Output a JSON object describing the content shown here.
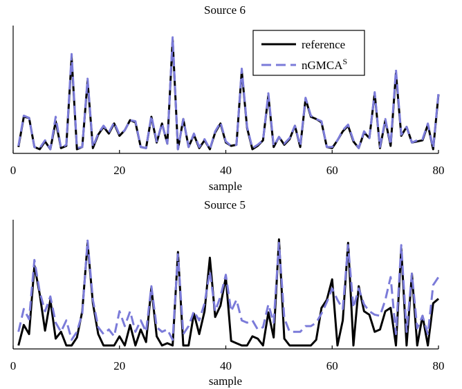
{
  "chart_data": [
    {
      "type": "line",
      "title": "Source 6",
      "xlabel": "sample",
      "ylabel": "",
      "xlim": [
        0,
        80
      ],
      "xticks": [
        0,
        20,
        40,
        60,
        80
      ],
      "ylim": [
        0,
        1
      ],
      "legend": {
        "placement": "top-right",
        "entries": [
          {
            "label": "reference",
            "sup": ""
          },
          {
            "label": "nGMCA",
            "sup": "S"
          }
        ]
      },
      "series": [
        {
          "name": "reference",
          "color": "#000000",
          "dash": "solid",
          "x": [
            1,
            2,
            3,
            4,
            5,
            6,
            7,
            8,
            9,
            10,
            11,
            12,
            13,
            14,
            15,
            16,
            17,
            18,
            19,
            20,
            21,
            22,
            23,
            24,
            25,
            26,
            27,
            28,
            29,
            30,
            31,
            32,
            33,
            34,
            35,
            36,
            37,
            38,
            39,
            40,
            41,
            42,
            43,
            44,
            45,
            46,
            47,
            48,
            49,
            50,
            51,
            52,
            53,
            54,
            55,
            56,
            57,
            58,
            59,
            60,
            61,
            62,
            63,
            64,
            65,
            66,
            67,
            68,
            69,
            70,
            71,
            72,
            73,
            74,
            75,
            76,
            77,
            78,
            79,
            80
          ],
          "values": [
            0.02,
            0.29,
            0.28,
            0.02,
            0.0,
            0.07,
            0.0,
            0.25,
            0.01,
            0.03,
            0.82,
            0.0,
            0.02,
            0.61,
            0.01,
            0.13,
            0.2,
            0.14,
            0.23,
            0.12,
            0.17,
            0.26,
            0.24,
            0.02,
            0.01,
            0.29,
            0.06,
            0.23,
            0.05,
            0.98,
            0.0,
            0.27,
            0.02,
            0.13,
            0.01,
            0.08,
            0.0,
            0.15,
            0.23,
            0.06,
            0.03,
            0.04,
            0.7,
            0.19,
            0.0,
            0.03,
            0.08,
            0.48,
            0.02,
            0.11,
            0.04,
            0.09,
            0.21,
            0.02,
            0.45,
            0.29,
            0.27,
            0.24,
            0.02,
            0.01,
            0.08,
            0.16,
            0.21,
            0.07,
            0.01,
            0.15,
            0.1,
            0.5,
            0.01,
            0.26,
            0.03,
            0.68,
            0.12,
            0.2,
            0.06,
            0.07,
            0.08,
            0.22,
            0.0,
            0.49
          ]
        },
        {
          "name": "nGMCA^S",
          "color": "#7b7bd9",
          "dash": "dashed",
          "x": [
            1,
            2,
            3,
            4,
            5,
            6,
            7,
            8,
            9,
            10,
            11,
            12,
            13,
            14,
            15,
            16,
            17,
            18,
            19,
            20,
            21,
            22,
            23,
            24,
            25,
            26,
            27,
            28,
            29,
            30,
            31,
            32,
            33,
            34,
            35,
            36,
            37,
            38,
            39,
            40,
            41,
            42,
            43,
            44,
            45,
            46,
            47,
            48,
            49,
            50,
            51,
            52,
            53,
            54,
            55,
            56,
            57,
            58,
            59,
            60,
            61,
            62,
            63,
            64,
            65,
            66,
            67,
            68,
            69,
            70,
            71,
            72,
            73,
            74,
            75,
            76,
            77,
            78,
            79,
            80
          ],
          "values": [
            0.03,
            0.3,
            0.28,
            0.02,
            0.01,
            0.08,
            0.0,
            0.29,
            0.01,
            0.04,
            0.85,
            0.01,
            0.02,
            0.63,
            0.02,
            0.14,
            0.21,
            0.15,
            0.24,
            0.13,
            0.17,
            0.26,
            0.25,
            0.02,
            0.01,
            0.3,
            0.07,
            0.23,
            0.05,
            1.0,
            0.0,
            0.27,
            0.02,
            0.14,
            0.02,
            0.09,
            0.0,
            0.16,
            0.24,
            0.07,
            0.03,
            0.04,
            0.72,
            0.2,
            0.01,
            0.04,
            0.08,
            0.5,
            0.03,
            0.11,
            0.05,
            0.1,
            0.21,
            0.03,
            0.46,
            0.3,
            0.27,
            0.25,
            0.02,
            0.02,
            0.08,
            0.17,
            0.22,
            0.08,
            0.01,
            0.16,
            0.1,
            0.51,
            0.02,
            0.27,
            0.04,
            0.71,
            0.13,
            0.2,
            0.06,
            0.08,
            0.09,
            0.23,
            0.01,
            0.5
          ]
        }
      ]
    },
    {
      "type": "line",
      "title": "Source 5",
      "xlabel": "sample",
      "ylabel": "",
      "xlim": [
        0,
        80
      ],
      "xticks": [
        0,
        20,
        40,
        60,
        80
      ],
      "ylim": [
        0,
        1
      ],
      "series": [
        {
          "name": "reference",
          "color": "#000000",
          "dash": "solid",
          "x": [
            1,
            2,
            3,
            4,
            5,
            6,
            7,
            8,
            9,
            10,
            11,
            12,
            13,
            14,
            15,
            16,
            17,
            18,
            19,
            20,
            21,
            22,
            23,
            24,
            25,
            26,
            27,
            28,
            29,
            30,
            31,
            32,
            33,
            34,
            35,
            36,
            37,
            38,
            39,
            40,
            41,
            42,
            43,
            44,
            45,
            46,
            47,
            48,
            49,
            50,
            51,
            52,
            53,
            54,
            55,
            56,
            57,
            58,
            59,
            60,
            61,
            62,
            63,
            64,
            65,
            66,
            67,
            68,
            69,
            70,
            71,
            72,
            73,
            74,
            75,
            76,
            77,
            78,
            79,
            80
          ],
          "values": [
            0.0,
            0.18,
            0.1,
            0.7,
            0.45,
            0.13,
            0.4,
            0.06,
            0.12,
            0.0,
            0.0,
            0.07,
            0.3,
            0.9,
            0.37,
            0.1,
            0.0,
            0.0,
            0.0,
            0.08,
            0.0,
            0.18,
            0.0,
            0.14,
            0.03,
            0.51,
            0.08,
            0.0,
            0.02,
            0.0,
            0.82,
            0.0,
            0.0,
            0.28,
            0.1,
            0.3,
            0.77,
            0.25,
            0.35,
            0.6,
            0.04,
            0.02,
            0.0,
            0.0,
            0.08,
            0.06,
            0.0,
            0.29,
            0.07,
            0.93,
            0.06,
            0.0,
            0.0,
            0.0,
            0.0,
            0.0,
            0.05,
            0.33,
            0.4,
            0.58,
            0.0,
            0.22,
            0.9,
            0.0,
            0.52,
            0.3,
            0.27,
            0.12,
            0.14,
            0.3,
            0.33,
            0.0,
            0.85,
            0.0,
            0.63,
            0.0,
            0.26,
            0.0,
            0.37,
            0.41
          ]
        },
        {
          "name": "nGMCA^S",
          "color": "#7b7bd9",
          "dash": "dashed",
          "x": [
            1,
            2,
            3,
            4,
            5,
            6,
            7,
            8,
            9,
            10,
            11,
            12,
            13,
            14,
            15,
            16,
            17,
            18,
            19,
            20,
            21,
            22,
            23,
            24,
            25,
            26,
            27,
            28,
            29,
            30,
            31,
            32,
            33,
            34,
            35,
            36,
            37,
            38,
            39,
            40,
            41,
            42,
            43,
            44,
            45,
            46,
            47,
            48,
            49,
            50,
            51,
            52,
            53,
            54,
            55,
            56,
            57,
            58,
            59,
            60,
            61,
            62,
            63,
            64,
            65,
            66,
            67,
            68,
            69,
            70,
            71,
            72,
            73,
            74,
            75,
            76,
            77,
            78,
            79,
            80
          ],
          "values": [
            0.12,
            0.32,
            0.23,
            0.75,
            0.47,
            0.3,
            0.43,
            0.2,
            0.12,
            0.22,
            0.05,
            0.12,
            0.28,
            0.92,
            0.4,
            0.16,
            0.1,
            0.14,
            0.08,
            0.3,
            0.17,
            0.3,
            0.12,
            0.22,
            0.12,
            0.52,
            0.16,
            0.12,
            0.14,
            0.05,
            0.8,
            0.1,
            0.17,
            0.3,
            0.22,
            0.37,
            0.65,
            0.3,
            0.43,
            0.62,
            0.3,
            0.4,
            0.22,
            0.2,
            0.22,
            0.14,
            0.16,
            0.36,
            0.2,
            0.9,
            0.24,
            0.12,
            0.12,
            0.12,
            0.17,
            0.17,
            0.2,
            0.28,
            0.38,
            0.5,
            0.4,
            0.32,
            0.88,
            0.33,
            0.5,
            0.36,
            0.3,
            0.27,
            0.26,
            0.4,
            0.6,
            0.1,
            0.88,
            0.12,
            0.63,
            0.15,
            0.26,
            0.1,
            0.53,
            0.6
          ]
        }
      ]
    }
  ]
}
